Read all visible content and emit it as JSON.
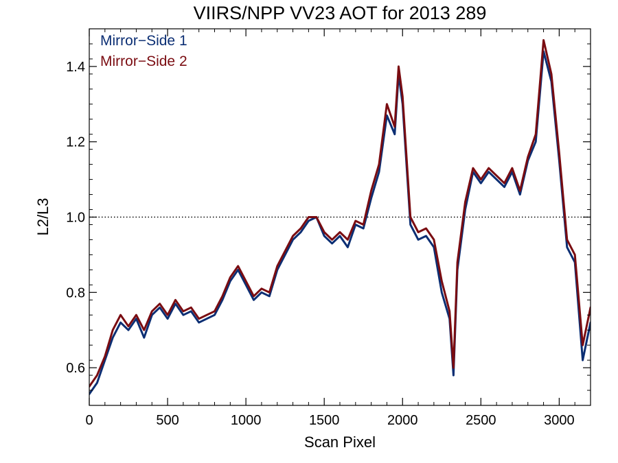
{
  "chart_data": {
    "type": "line",
    "title": "VIIRS/NPP VV23 AOT for 2013 289",
    "xlabel": "Scan Pixel",
    "ylabel": "L2/L3",
    "xlim": [
      0,
      3200
    ],
    "ylim": [
      0.5,
      1.5
    ],
    "x_ticks": [
      "0",
      "500",
      "1000",
      "1500",
      "2000",
      "2500",
      "3000"
    ],
    "y_ticks": [
      "0.6",
      "0.8",
      "1.0",
      "1.2",
      "1.4"
    ],
    "x_tick_values": [
      0,
      500,
      1000,
      1500,
      2000,
      2500,
      3000
    ],
    "y_tick_values": [
      0.6,
      0.8,
      1.0,
      1.2,
      1.4
    ],
    "reference_line": {
      "y": 1.0,
      "style": "dotted"
    },
    "legend_position": "top-left",
    "grid": false,
    "series": [
      {
        "name": "Mirror−Side 1",
        "color": "#0b2e73",
        "x": [
          0,
          50,
          100,
          150,
          200,
          250,
          300,
          350,
          400,
          450,
          500,
          550,
          600,
          650,
          700,
          750,
          800,
          850,
          900,
          950,
          1000,
          1050,
          1100,
          1150,
          1200,
          1250,
          1300,
          1350,
          1400,
          1450,
          1500,
          1550,
          1600,
          1650,
          1700,
          1750,
          1800,
          1850,
          1900,
          1950,
          1975,
          2000,
          2050,
          2100,
          2150,
          2200,
          2250,
          2300,
          2325,
          2350,
          2400,
          2450,
          2500,
          2550,
          2600,
          2650,
          2700,
          2750,
          2800,
          2850,
          2900,
          2950,
          3000,
          3050,
          3100,
          3150,
          3200
        ],
        "y": [
          0.53,
          0.56,
          0.62,
          0.68,
          0.72,
          0.7,
          0.73,
          0.68,
          0.74,
          0.76,
          0.73,
          0.77,
          0.74,
          0.75,
          0.72,
          0.73,
          0.74,
          0.78,
          0.83,
          0.86,
          0.82,
          0.78,
          0.8,
          0.79,
          0.86,
          0.9,
          0.94,
          0.96,
          0.99,
          1.0,
          0.95,
          0.93,
          0.95,
          0.92,
          0.98,
          0.97,
          1.05,
          1.12,
          1.27,
          1.22,
          1.38,
          1.3,
          0.98,
          0.94,
          0.95,
          0.92,
          0.8,
          0.73,
          0.58,
          0.86,
          1.02,
          1.12,
          1.09,
          1.12,
          1.1,
          1.08,
          1.12,
          1.06,
          1.15,
          1.2,
          1.44,
          1.36,
          1.15,
          0.92,
          0.88,
          0.62,
          0.72
        ]
      },
      {
        "name": "Mirror−Side 2",
        "color": "#7a0c11",
        "x": [
          0,
          50,
          100,
          150,
          200,
          250,
          300,
          350,
          400,
          450,
          500,
          550,
          600,
          650,
          700,
          750,
          800,
          850,
          900,
          950,
          1000,
          1050,
          1100,
          1150,
          1200,
          1250,
          1300,
          1350,
          1400,
          1450,
          1500,
          1550,
          1600,
          1650,
          1700,
          1750,
          1800,
          1850,
          1900,
          1950,
          1975,
          2000,
          2050,
          2100,
          2150,
          2200,
          2250,
          2300,
          2325,
          2350,
          2400,
          2450,
          2500,
          2550,
          2600,
          2650,
          2700,
          2750,
          2800,
          2850,
          2900,
          2950,
          3000,
          3050,
          3100,
          3150,
          3200
        ],
        "y": [
          0.55,
          0.58,
          0.63,
          0.7,
          0.74,
          0.71,
          0.74,
          0.7,
          0.75,
          0.77,
          0.74,
          0.78,
          0.75,
          0.76,
          0.73,
          0.74,
          0.75,
          0.79,
          0.84,
          0.87,
          0.83,
          0.79,
          0.81,
          0.8,
          0.87,
          0.91,
          0.95,
          0.97,
          1.0,
          1.0,
          0.96,
          0.94,
          0.96,
          0.94,
          0.99,
          0.98,
          1.07,
          1.14,
          1.3,
          1.24,
          1.4,
          1.32,
          1.0,
          0.96,
          0.97,
          0.94,
          0.83,
          0.75,
          0.6,
          0.88,
          1.04,
          1.13,
          1.1,
          1.13,
          1.11,
          1.09,
          1.13,
          1.07,
          1.16,
          1.22,
          1.47,
          1.38,
          1.17,
          0.94,
          0.9,
          0.66,
          0.76
        ]
      }
    ]
  }
}
